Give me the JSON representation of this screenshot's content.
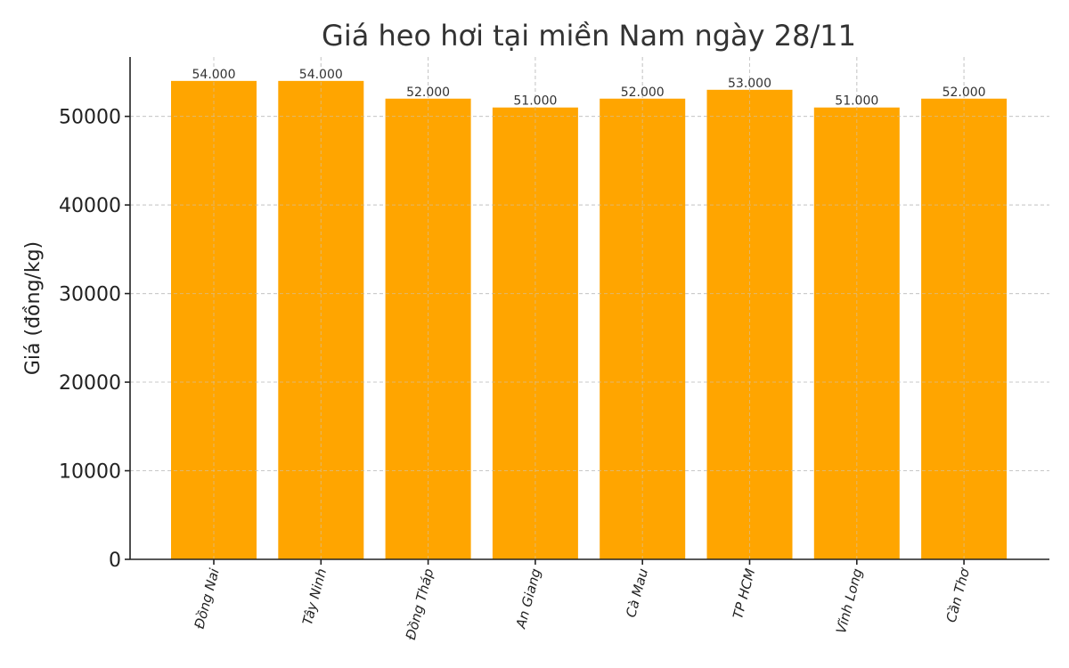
{
  "chart_data": {
    "type": "bar",
    "title": "Giá heo hơi tại miền Nam ngày 28/11",
    "xlabel": "",
    "ylabel": "Giá (đồng/kg)",
    "categories": [
      "Đồng Nai",
      "Tây Ninh",
      "Đồng Tháp",
      "An Giang",
      "Cà Mau",
      "TP HCM",
      "Vĩnh Long",
      "Cần Thơ"
    ],
    "values": [
      54000,
      54000,
      52000,
      51000,
      52000,
      53000,
      51000,
      52000
    ],
    "data_labels": [
      "54.000",
      "54.000",
      "52.000",
      "51.000",
      "52.000",
      "53.000",
      "51.000",
      "52.000"
    ],
    "yticks": [
      0,
      10000,
      20000,
      30000,
      40000,
      50000
    ],
    "ytick_labels": [
      "0",
      "10000",
      "20000",
      "30000",
      "40000",
      "50000"
    ],
    "ylim": [
      0,
      56700
    ],
    "grid": true,
    "legend": "none",
    "bar_color": "#FFA500"
  }
}
